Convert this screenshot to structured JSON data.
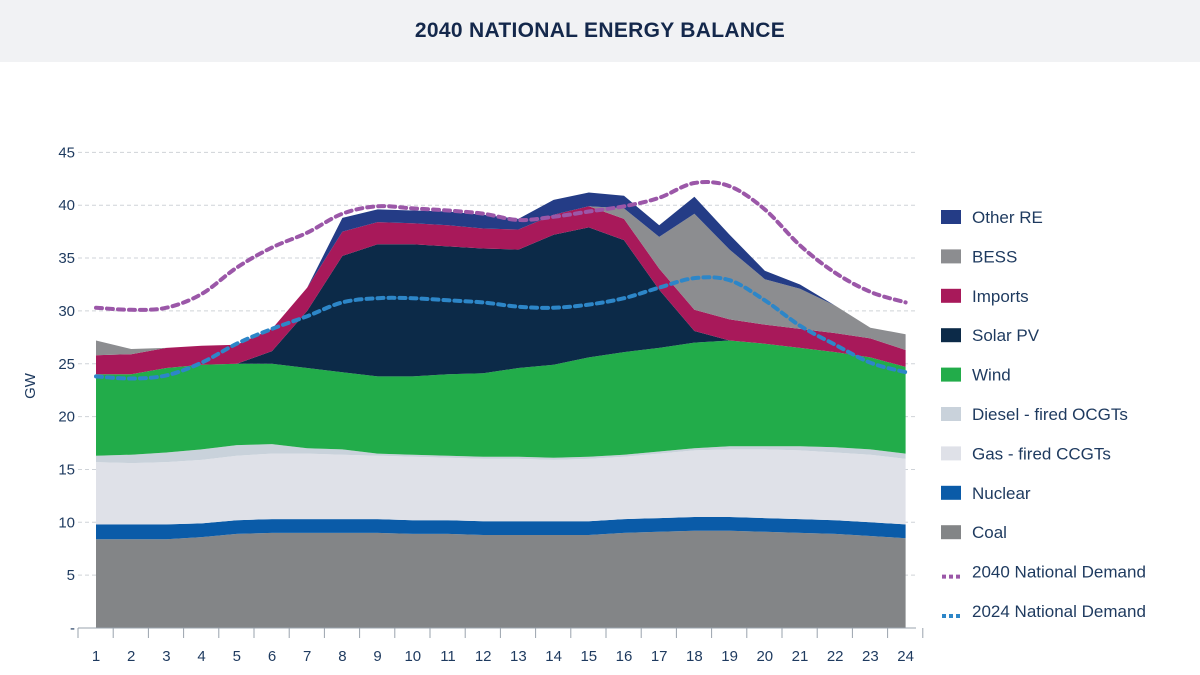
{
  "chart_data": {
    "type": "area",
    "title": "2040 NATIONAL ENERGY BALANCE",
    "ylabel": "GW",
    "xlabel": "",
    "ylim": [
      0,
      45
    ],
    "yticks": [
      {
        "value": 0,
        "label": "-"
      },
      {
        "value": 5,
        "label": "5"
      },
      {
        "value": 10,
        "label": "10"
      },
      {
        "value": 15,
        "label": "15"
      },
      {
        "value": 20,
        "label": "20"
      },
      {
        "value": 25,
        "label": "25"
      },
      {
        "value": 30,
        "label": "30"
      },
      {
        "value": 35,
        "label": "35"
      },
      {
        "value": 40,
        "label": "40"
      },
      {
        "value": 45,
        "label": "45"
      }
    ],
    "grid": true,
    "legend_position": "right",
    "categories": [
      "1",
      "2",
      "3",
      "4",
      "5",
      "6",
      "7",
      "8",
      "9",
      "10",
      "11",
      "12",
      "13",
      "14",
      "15",
      "16",
      "17",
      "18",
      "19",
      "20",
      "21",
      "22",
      "23",
      "24"
    ],
    "stack_order": "bottom-to-top",
    "series": [
      {
        "name": "Coal",
        "color": "#838587",
        "values": [
          8.4,
          8.4,
          8.4,
          8.6,
          8.9,
          9.0,
          9.0,
          9.0,
          9.0,
          8.9,
          8.9,
          8.8,
          8.8,
          8.8,
          8.8,
          9.0,
          9.1,
          9.2,
          9.2,
          9.1,
          9.0,
          8.9,
          8.7,
          8.5
        ]
      },
      {
        "name": "Nuclear",
        "color": "#0a5ba8",
        "values": [
          1.4,
          1.4,
          1.4,
          1.3,
          1.3,
          1.3,
          1.3,
          1.3,
          1.3,
          1.3,
          1.3,
          1.3,
          1.3,
          1.3,
          1.3,
          1.3,
          1.3,
          1.3,
          1.3,
          1.3,
          1.3,
          1.3,
          1.3,
          1.3
        ]
      },
      {
        "name": "Gas - fired CCGTs",
        "color": "#dfe1e8",
        "values": [
          5.9,
          5.8,
          5.9,
          6.0,
          6.1,
          6.2,
          6.2,
          6.1,
          6.0,
          6.0,
          5.9,
          5.9,
          5.9,
          5.8,
          5.9,
          5.9,
          6.1,
          6.3,
          6.4,
          6.5,
          6.5,
          6.4,
          6.4,
          6.2
        ]
      },
      {
        "name": "Diesel - fired OCGTs",
        "color": "#c9d2db",
        "values": [
          0.6,
          0.8,
          0.9,
          1.0,
          1.0,
          0.9,
          0.5,
          0.5,
          0.2,
          0.2,
          0.2,
          0.2,
          0.2,
          0.2,
          0.2,
          0.2,
          0.2,
          0.2,
          0.3,
          0.3,
          0.4,
          0.5,
          0.5,
          0.5
        ]
      },
      {
        "name": "Wind",
        "color": "#22ac4a",
        "values": [
          7.7,
          7.6,
          8.0,
          8.0,
          7.7,
          7.6,
          7.6,
          7.3,
          7.3,
          7.4,
          7.7,
          7.9,
          8.4,
          8.8,
          9.4,
          9.7,
          9.8,
          10.0,
          10.0,
          9.7,
          9.3,
          9.0,
          8.7,
          8.2
        ]
      },
      {
        "name": "Solar PV",
        "color": "#0c2a48",
        "values": [
          0,
          0,
          0,
          0,
          0,
          1.2,
          5.4,
          11.0,
          12.5,
          12.5,
          12.1,
          11.8,
          11.2,
          12.3,
          12.3,
          10.6,
          5.5,
          1.1,
          0,
          0,
          0,
          0,
          0,
          0
        ]
      },
      {
        "name": "Imports",
        "color": "#a8195a",
        "values": [
          1.8,
          1.9,
          1.9,
          1.8,
          1.8,
          2.1,
          2.2,
          2.3,
          2.1,
          2.0,
          2.0,
          1.9,
          1.9,
          1.9,
          2.0,
          2.0,
          2.0,
          2.0,
          2.0,
          1.8,
          1.8,
          1.8,
          1.8,
          1.6
        ]
      },
      {
        "name": "BESS",
        "color": "#8c8d90",
        "values": [
          1.4,
          0.5,
          0,
          0,
          0,
          0,
          0,
          0,
          0,
          0,
          0,
          0,
          0,
          0,
          0,
          1.0,
          3.0,
          9.1,
          6.6,
          4.3,
          3.8,
          2.6,
          1.0,
          1.5
        ]
      },
      {
        "name": "Other RE",
        "color": "#243c86",
        "values": [
          0,
          0,
          0,
          0,
          0,
          0,
          0,
          1.3,
          1.2,
          1.2,
          1.3,
          1.3,
          1.0,
          1.4,
          1.3,
          1.2,
          1.1,
          1.6,
          1.4,
          0.8,
          0.4,
          0,
          0,
          0
        ]
      }
    ],
    "lines": [
      {
        "name": "2040 National Demand",
        "color": "#9b57a8",
        "values": [
          30.3,
          30.1,
          30.3,
          31.6,
          34.1,
          36.0,
          37.4,
          39.2,
          39.9,
          39.7,
          39.5,
          39.2,
          38.6,
          38.9,
          39.4,
          39.9,
          40.7,
          42.1,
          41.8,
          39.6,
          36.2,
          33.6,
          31.8,
          30.8
        ]
      },
      {
        "name": "2024 National Demand",
        "color": "#2d86c8",
        "values": [
          23.8,
          23.6,
          23.9,
          25.1,
          26.9,
          28.3,
          29.5,
          30.8,
          31.2,
          31.2,
          31.0,
          30.8,
          30.4,
          30.3,
          30.6,
          31.2,
          32.2,
          33.1,
          32.9,
          31.0,
          28.6,
          26.8,
          25.1,
          24.2
        ]
      }
    ],
    "legend": [
      {
        "name": "Other RE",
        "kind": "area"
      },
      {
        "name": "BESS",
        "kind": "area"
      },
      {
        "name": "Imports",
        "kind": "area"
      },
      {
        "name": "Solar PV",
        "kind": "area"
      },
      {
        "name": "Wind",
        "kind": "area"
      },
      {
        "name": "Diesel - fired OCGTs",
        "kind": "area"
      },
      {
        "name": "Gas - fired CCGTs",
        "kind": "area"
      },
      {
        "name": "Nuclear",
        "kind": "area"
      },
      {
        "name": "Coal",
        "kind": "area"
      },
      {
        "name": "2040 National Demand",
        "kind": "line"
      },
      {
        "name": "2024 National Demand",
        "kind": "line"
      }
    ]
  }
}
